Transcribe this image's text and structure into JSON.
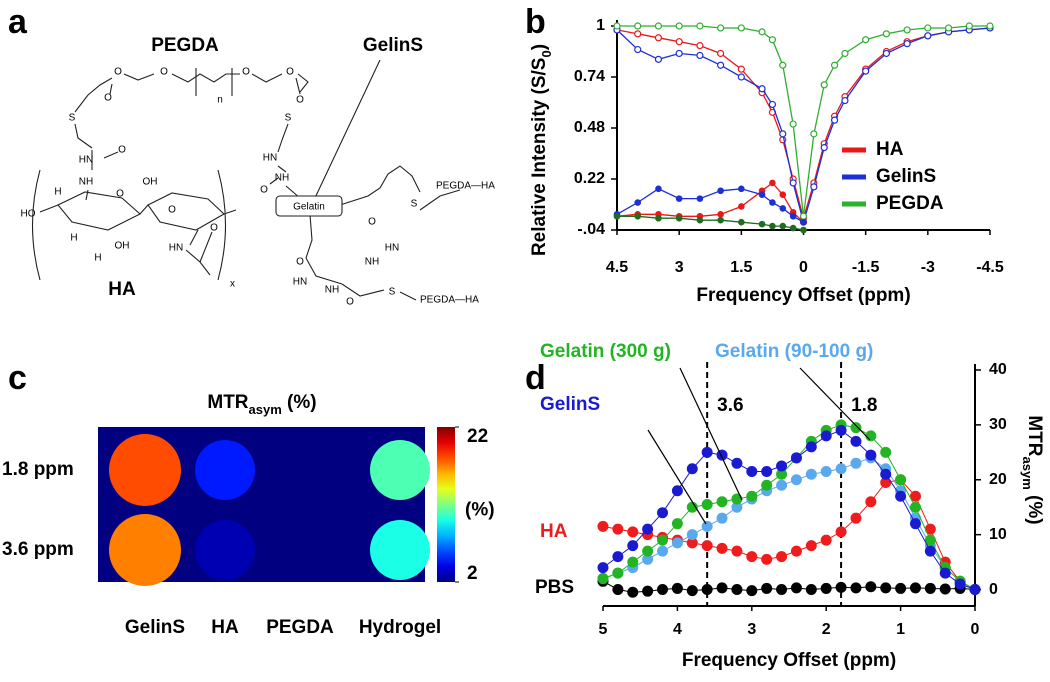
{
  "panel_labels": [
    "a",
    "b",
    "c",
    "d"
  ],
  "structure": {
    "pegda": "PEGDA",
    "gelins": "GelinS",
    "ha": "HA",
    "gelatin": "Gelatin",
    "repeat": "x",
    "links": [
      "PEGDA—HA",
      "PEGDA—HA"
    ],
    "atoms": [
      "O",
      "O",
      "n",
      "O",
      "O",
      "O",
      "O",
      "S",
      "S",
      "O",
      "HN",
      "NH",
      "HN",
      "NH",
      "O",
      "H",
      "HO",
      "OH",
      "O",
      "H",
      "OH",
      "H",
      "O",
      "HN",
      "O",
      "O",
      "S",
      "HN",
      "NH",
      "O",
      "HN",
      "NH",
      "O",
      "S"
    ]
  },
  "chart_data": [
    {
      "type": "line",
      "x_label": "Frequency Offset (ppm)",
      "y_label": {
        "text": "Relative Intensity (S/S",
        "sub": "0",
        "end": ")"
      },
      "x": [
        4.5,
        4,
        3.5,
        3,
        2.5,
        2,
        1.5,
        1,
        0.75,
        0.5,
        0.25,
        0,
        -0.25,
        -0.5,
        -0.75,
        -1,
        -1.5,
        -2,
        -2.5,
        -3,
        -3.5,
        -4,
        -4.5
      ],
      "xlim": [
        4.5,
        -4.5
      ],
      "xticks": [
        4.5,
        3,
        1.5,
        0,
        -1.5,
        -3,
        -4.5
      ],
      "ylim": [
        -0.04,
        1
      ],
      "yticks": [
        {
          "value": -0.04,
          "label": "-.04"
        },
        0.22,
        0.48,
        0.74,
        1
      ],
      "legend": "right",
      "series": [
        {
          "name": "HA",
          "color": "#e8191b",
          "marker": "open",
          "values": [
            0.98,
            0.96,
            0.94,
            0.92,
            0.9,
            0.86,
            0.78,
            0.66,
            0.56,
            0.42,
            0.22,
            0.02,
            0.2,
            0.4,
            0.54,
            0.64,
            0.78,
            0.87,
            0.92,
            0.95,
            0.97,
            0.98,
            0.99
          ]
        },
        {
          "name": "GelinS",
          "color": "#1e2fd6",
          "marker": "open",
          "values": [
            0.98,
            0.88,
            0.83,
            0.86,
            0.85,
            0.8,
            0.74,
            0.68,
            0.6,
            0.45,
            0.2,
            0.0,
            0.18,
            0.38,
            0.52,
            0.62,
            0.77,
            0.86,
            0.91,
            0.95,
            0.97,
            0.98,
            0.99
          ]
        },
        {
          "name": "PEGDA",
          "color": "#2fae2f",
          "marker": "open",
          "values": [
            1.0,
            1.0,
            1.0,
            1.0,
            1.0,
            0.99,
            0.99,
            0.97,
            0.93,
            0.8,
            0.5,
            0.03,
            0.45,
            0.7,
            0.8,
            0.86,
            0.93,
            0.96,
            0.98,
            0.99,
            0.99,
            1.0,
            1.0
          ]
        },
        {
          "color": "#e8191b",
          "marker": "filled",
          "values": [
            0.03,
            0.04,
            0.04,
            0.03,
            0.03,
            0.04,
            0.08,
            0.16,
            0.2,
            0.14,
            0.05,
            0.0,
            null,
            null,
            null,
            null,
            null,
            null,
            null,
            null,
            null,
            null,
            null
          ]
        },
        {
          "color": "#1e2fd6",
          "marker": "filled",
          "values": [
            0.04,
            0.1,
            0.17,
            0.12,
            0.12,
            0.16,
            0.17,
            0.14,
            0.1,
            0.07,
            0.03,
            0.0,
            null,
            null,
            null,
            null,
            null,
            null,
            null,
            null,
            null,
            null,
            null
          ]
        },
        {
          "color": "#1f6e1f",
          "marker": "filled",
          "values": [
            0.03,
            0.03,
            0.02,
            0.02,
            0.01,
            0.01,
            0.0,
            -0.01,
            -0.02,
            -0.02,
            -0.03,
            -0.04,
            null,
            null,
            null,
            null,
            null,
            null,
            null,
            null,
            null,
            null,
            null
          ]
        }
      ]
    },
    {
      "type": "heatmap",
      "title": {
        "text": "MTR",
        "sub": "asym",
        "end": " (%)"
      },
      "rows": [
        "1.8 ppm",
        "3.6 ppm"
      ],
      "columns": [
        "GelinS",
        "HA",
        "PEGDA",
        "Hydrogel"
      ],
      "values": [
        [
          18,
          5,
          2,
          11
        ],
        [
          17,
          3,
          2,
          10
        ]
      ],
      "colormap": "jet",
      "zlim": [
        2,
        22
      ],
      "zticks": [
        2,
        22
      ],
      "colorbar_label": "(%)"
    },
    {
      "type": "scatter-line",
      "x_label": "Frequency Offset (ppm)",
      "y_label": {
        "text": "MTR",
        "sub": "asym",
        "end": " (%)"
      },
      "y_axis_position": "right",
      "x": [
        5,
        4.8,
        4.6,
        4.4,
        4.2,
        4,
        3.8,
        3.6,
        3.4,
        3.2,
        3,
        2.8,
        2.6,
        2.4,
        2.2,
        2,
        1.8,
        1.6,
        1.4,
        1.2,
        1,
        0.8,
        0.6,
        0.4,
        0.2,
        0
      ],
      "xlim": [
        5,
        0
      ],
      "xticks": [
        5,
        4,
        3,
        2,
        1,
        0
      ],
      "ylim": [
        -3,
        40
      ],
      "yticks": [
        0,
        10,
        20,
        30,
        40
      ],
      "vlines": [
        3.6,
        1.8
      ],
      "series": [
        {
          "name": "PBS",
          "color": "#000000",
          "values": [
            1.5,
            0,
            -0.5,
            -0.3,
            0,
            0.2,
            -0.2,
            0,
            0.3,
            0,
            -0.2,
            0.2,
            0,
            0.3,
            0,
            0.2,
            0.4,
            0.3,
            0.5,
            0.3,
            0.2,
            0.3,
            0.2,
            0.1,
            0.2,
            0
          ]
        },
        {
          "name": "HA",
          "color": "#ee1c1c",
          "values": [
            11.5,
            11,
            10.5,
            10,
            9.5,
            9,
            8.5,
            8,
            7.5,
            7,
            6,
            5.5,
            6,
            7,
            8,
            9,
            10.5,
            13,
            16,
            19.5,
            20,
            17,
            11,
            5,
            1.5,
            0
          ]
        },
        {
          "name": "Gelatin (90-100 g)",
          "color": "#5aa8ee",
          "values": [
            2,
            3,
            4,
            5.5,
            7,
            8.5,
            10,
            11.5,
            13,
            15,
            16.5,
            18,
            19,
            20,
            21,
            21.5,
            22,
            23,
            24,
            22,
            18,
            13,
            8,
            4,
            1.5,
            0
          ]
        },
        {
          "name": "Gelatin (300 g)",
          "color": "#22b422",
          "values": [
            2,
            3,
            5,
            7,
            9,
            12,
            15,
            15.5,
            16,
            16.5,
            17,
            19,
            21,
            24,
            27,
            29,
            30,
            29.5,
            28,
            25,
            20,
            15,
            9,
            4,
            1.5,
            0
          ]
        },
        {
          "name": "GelinS",
          "color": "#1a1ad0",
          "values": [
            4,
            6,
            8,
            11,
            14,
            18,
            22,
            25,
            24.5,
            23,
            21.5,
            21.5,
            22.5,
            24,
            26,
            28,
            29,
            27,
            24.5,
            21,
            17,
            12,
            7,
            3,
            1,
            0
          ]
        }
      ]
    }
  ]
}
